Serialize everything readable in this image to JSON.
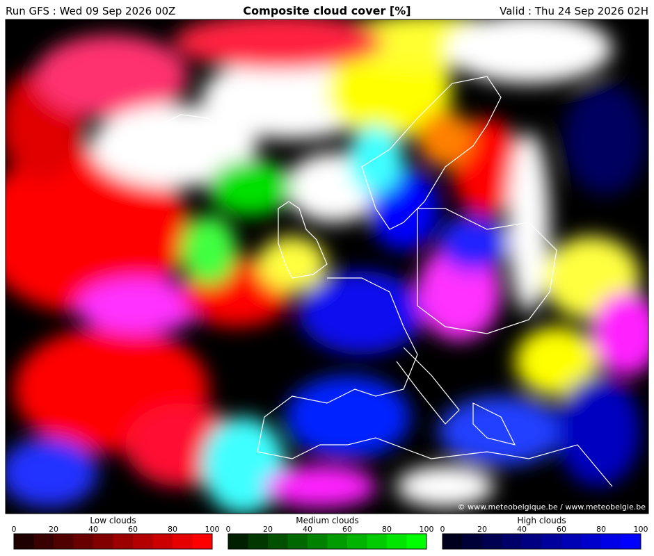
{
  "header": {
    "run": "Run GFS : Wed 09 Sep 2026 00Z",
    "title": "Composite cloud cover [%]",
    "valid": "Valid : Thu 24 Sep 2026 02H"
  },
  "map": {
    "credit": "© www.meteobelgique.be / www.meteobelgie.be"
  },
  "legends": [
    {
      "label": "Low clouds",
      "ticks": [
        0,
        20,
        40,
        60,
        80,
        100
      ],
      "colors": [
        "#1e0000",
        "#380000",
        "#500000",
        "#680000",
        "#820000",
        "#9c0000",
        "#b40000",
        "#cc0000",
        "#e60000",
        "#ff0000"
      ]
    },
    {
      "label": "Medium clouds",
      "ticks": [
        0,
        20,
        40,
        60,
        80,
        100
      ],
      "colors": [
        "#001e00",
        "#003800",
        "#005000",
        "#006800",
        "#008200",
        "#009c00",
        "#00b400",
        "#00cc00",
        "#00e600",
        "#00ff00"
      ]
    },
    {
      "label": "High clouds",
      "ticks": [
        0,
        20,
        40,
        60,
        80,
        100
      ],
      "colors": [
        "#00001e",
        "#000038",
        "#000050",
        "#000068",
        "#000082",
        "#00009c",
        "#0000b4",
        "#0000cc",
        "#0000e6",
        "#0000ff"
      ]
    }
  ]
}
